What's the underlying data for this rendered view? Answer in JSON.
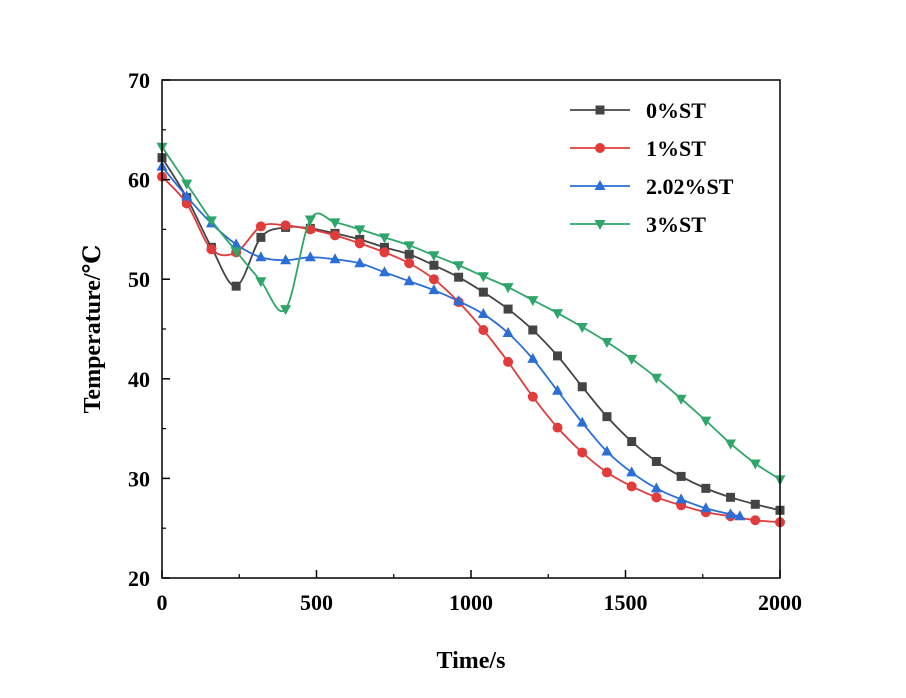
{
  "chart_data": {
    "type": "line",
    "title": "",
    "xlabel": "Time/s",
    "ylabel": "Temperature/℃",
    "xlim": [
      0,
      2000
    ],
    "ylim": [
      20,
      70
    ],
    "xticks": [
      0,
      500,
      1000,
      1500,
      2000
    ],
    "yticks": [
      20,
      30,
      40,
      50,
      60,
      70
    ],
    "grid": false,
    "legend_position": "top-right",
    "series": [
      {
        "name": "0%ST",
        "color": "#444444",
        "marker": "square",
        "x": [
          0,
          80,
          160,
          240,
          320,
          400,
          480,
          560,
          640,
          720,
          800,
          880,
          960,
          1040,
          1120,
          1200,
          1280,
          1360,
          1440,
          1520,
          1600,
          1680,
          1760,
          1840,
          1920,
          2000
        ],
        "y": [
          62.2,
          58.2,
          53.2,
          49.3,
          54.2,
          55.2,
          55.1,
          54.6,
          54.0,
          53.2,
          52.5,
          51.4,
          50.2,
          48.7,
          47.0,
          44.9,
          42.3,
          39.2,
          36.2,
          33.7,
          31.7,
          30.2,
          29.0,
          28.1,
          27.4,
          26.8
        ]
      },
      {
        "name": "1%ST",
        "color": "#e23b3b",
        "marker": "circle",
        "x": [
          0,
          80,
          160,
          240,
          320,
          400,
          480,
          560,
          640,
          720,
          800,
          880,
          960,
          1040,
          1120,
          1200,
          1280,
          1360,
          1440,
          1520,
          1600,
          1680,
          1760,
          1840,
          1920,
          2000
        ],
        "y": [
          60.3,
          57.6,
          53.0,
          52.7,
          55.3,
          55.4,
          55.0,
          54.4,
          53.6,
          52.7,
          51.6,
          50.0,
          47.7,
          44.9,
          41.7,
          38.2,
          35.1,
          32.6,
          30.6,
          29.2,
          28.1,
          27.3,
          26.6,
          26.2,
          25.8,
          25.6
        ]
      },
      {
        "name": "2.02%ST",
        "color": "#2b6fd6",
        "marker": "triangle-up",
        "x": [
          0,
          80,
          160,
          240,
          320,
          400,
          480,
          560,
          640,
          720,
          800,
          880,
          960,
          1040,
          1120,
          1200,
          1280,
          1360,
          1440,
          1520,
          1600,
          1680,
          1760,
          1840,
          1870
        ],
        "y": [
          61.3,
          58.3,
          55.6,
          53.5,
          52.2,
          51.9,
          52.2,
          52.0,
          51.6,
          50.7,
          49.8,
          48.9,
          47.8,
          46.5,
          44.6,
          42.0,
          38.8,
          35.6,
          32.7,
          30.6,
          29.0,
          27.9,
          27.0,
          26.4,
          26.2
        ]
      },
      {
        "name": "3%ST",
        "color": "#2ea66a",
        "marker": "triangle-down",
        "x": [
          0,
          80,
          160,
          240,
          320,
          400,
          480,
          560,
          640,
          720,
          800,
          880,
          960,
          1040,
          1120,
          1200,
          1280,
          1360,
          1440,
          1520,
          1600,
          1680,
          1760,
          1840,
          1920,
          2000
        ],
        "y": [
          63.3,
          59.6,
          55.9,
          52.8,
          49.8,
          47.0,
          56.0,
          55.7,
          55.0,
          54.2,
          53.4,
          52.4,
          51.4,
          50.3,
          49.2,
          47.9,
          46.6,
          45.2,
          43.7,
          42.0,
          40.1,
          38.0,
          35.8,
          33.5,
          31.5,
          29.9
        ]
      }
    ]
  }
}
